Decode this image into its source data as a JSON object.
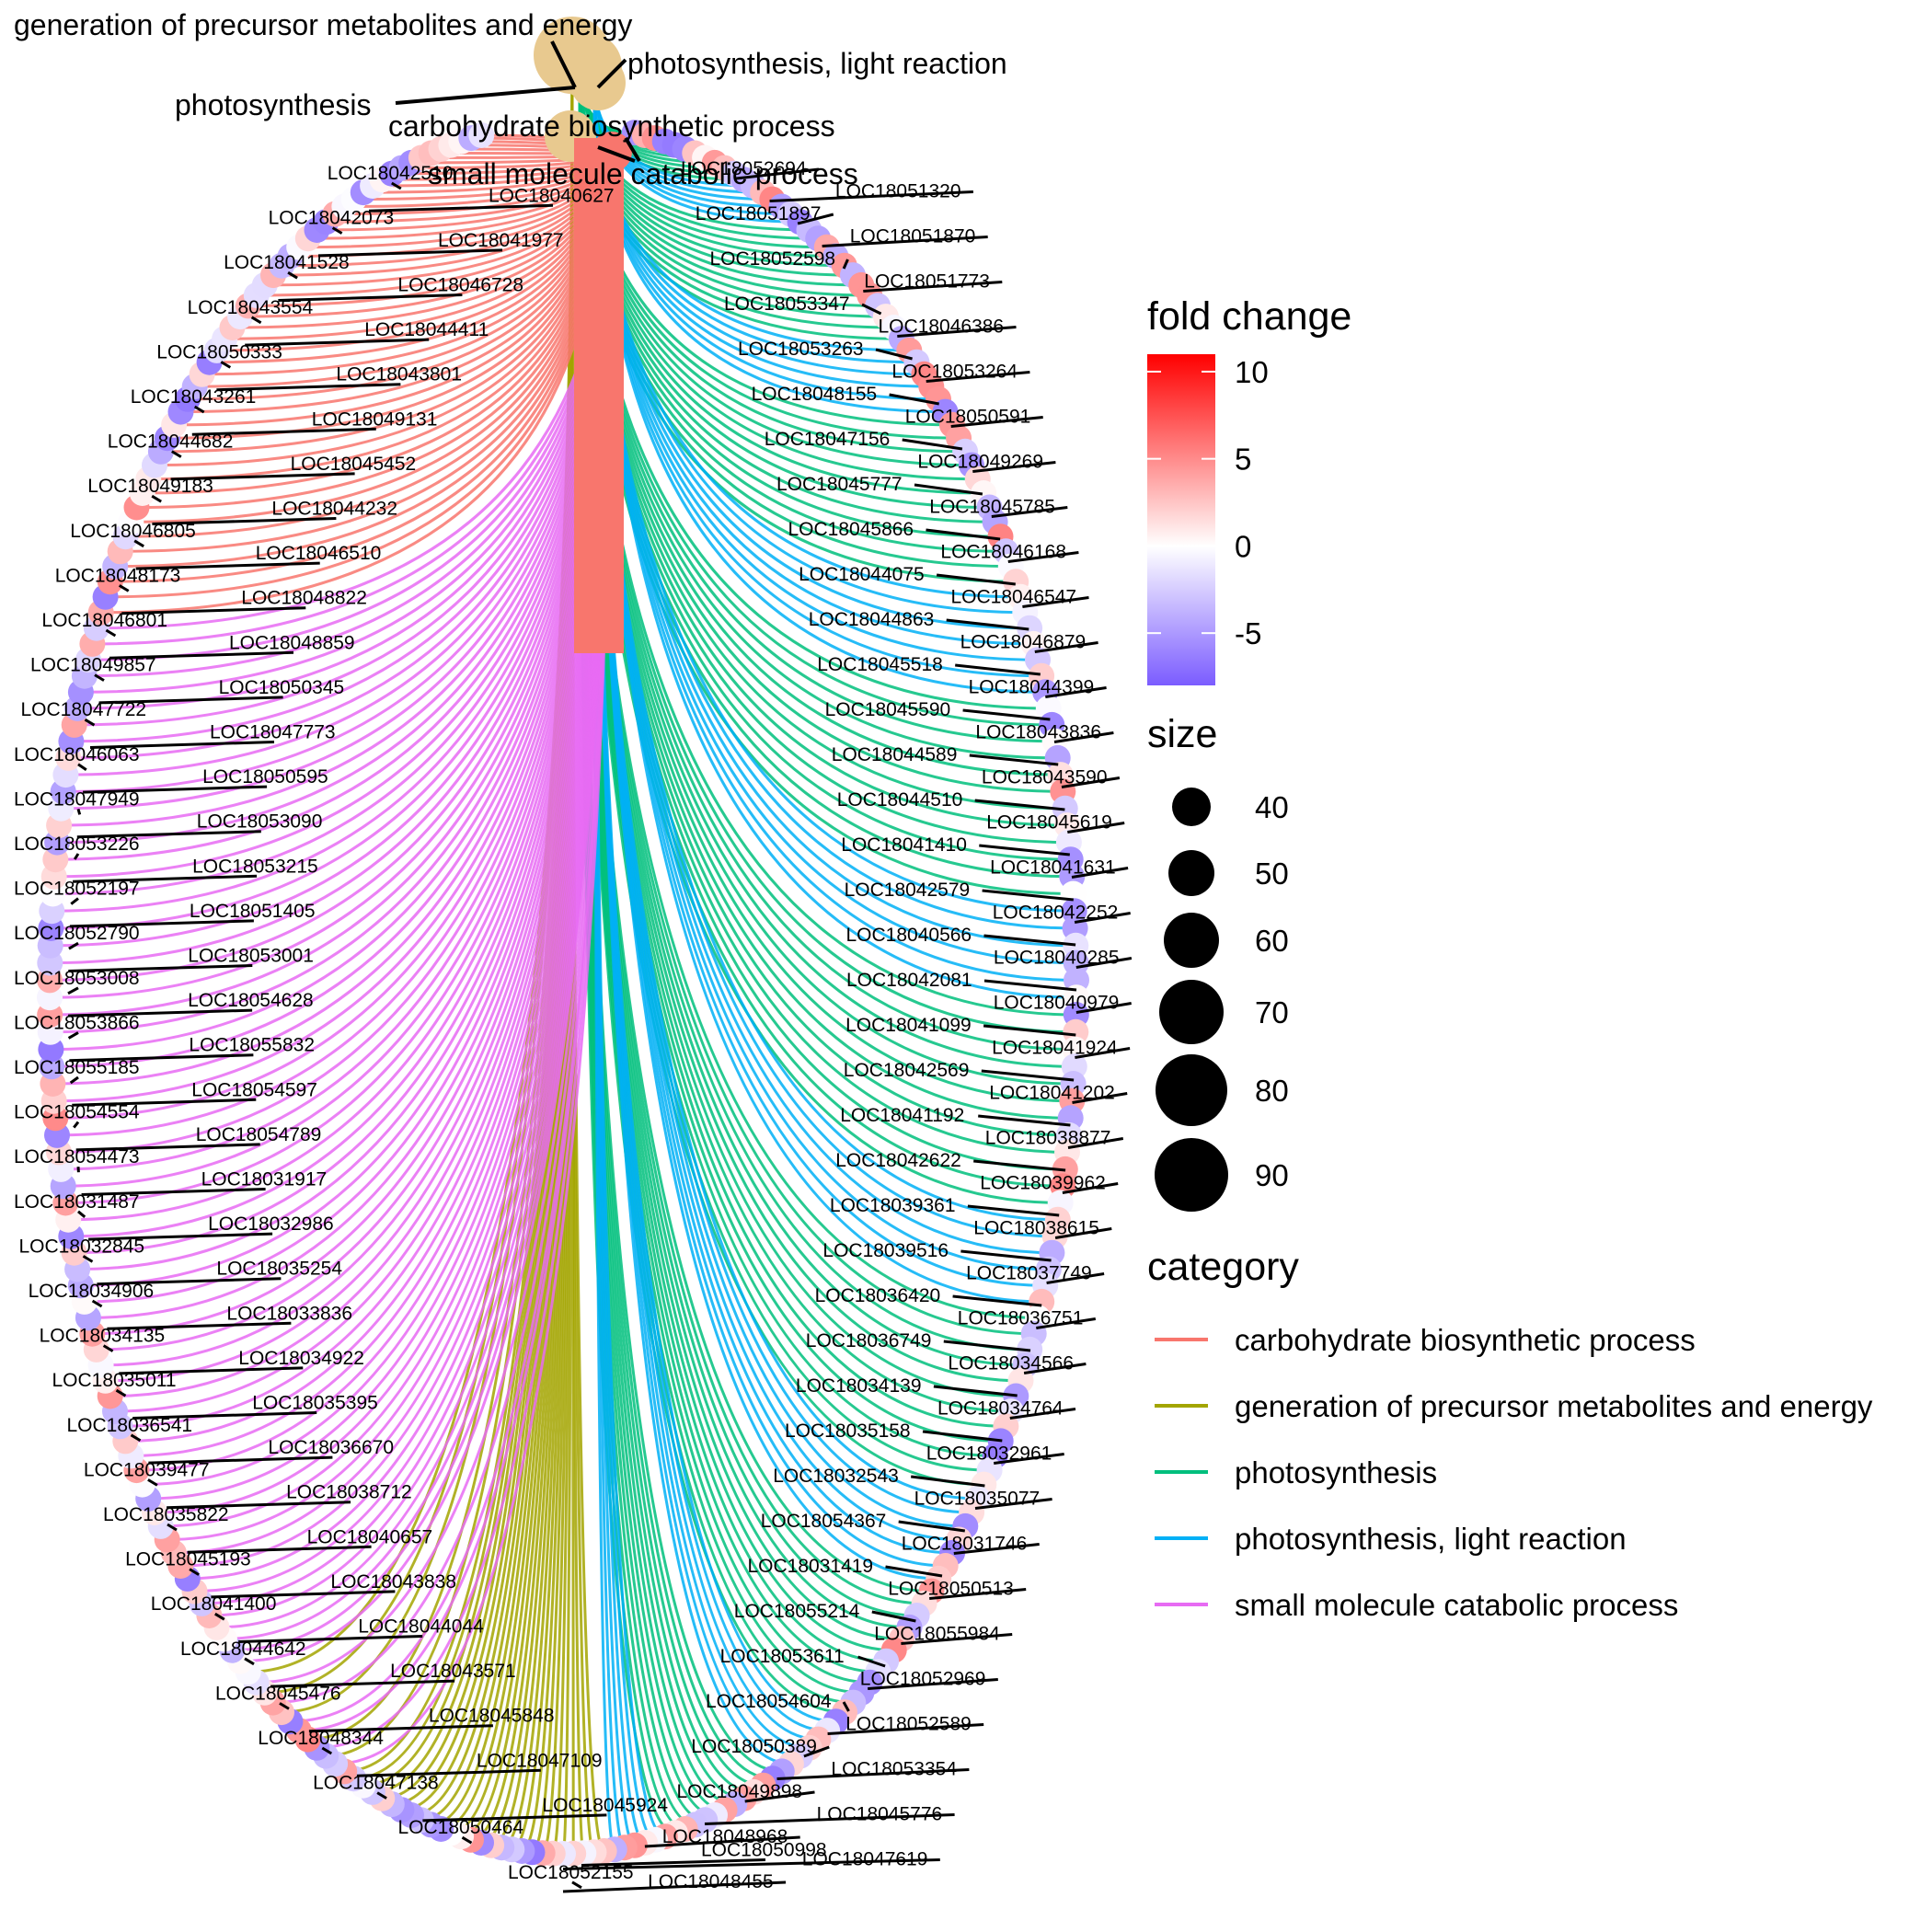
{
  "categories": [
    {
      "name": "carbohydrate biosynthetic process",
      "color": "#F8766D",
      "node_color": "#E8C98F"
    },
    {
      "name": "generation of precursor metabolites and energy",
      "color": "#A3A500",
      "node_color": "#E8C98F"
    },
    {
      "name": "photosynthesis",
      "color": "#00BF7D",
      "node_color": "#E8C98F"
    },
    {
      "name": "photosynthesis, light reaction",
      "color": "#00B0F6",
      "node_color": "#E8C98F"
    },
    {
      "name": "small molecule catabolic process",
      "color": "#E76BF3",
      "node_color": "#F8766D"
    }
  ],
  "legend": {
    "fold_change": {
      "title": "fold change",
      "ticks": [
        "10",
        "5",
        "0",
        "-5"
      ],
      "low_color": "#7B5CFF",
      "mid_color": "#FFFFFF",
      "high_color": "#FF0000",
      "range": [
        -8,
        11
      ]
    },
    "size": {
      "title": "size",
      "values": [
        "40",
        "50",
        "60",
        "70",
        "80",
        "90"
      ]
    },
    "category": {
      "title": "category"
    }
  },
  "gene_labels": [
    "LOC18052694",
    "LOC18051320",
    "LOC18051897",
    "LOC18051870",
    "LOC18052598",
    "LOC18051773",
    "LOC18053347",
    "LOC18046386",
    "LOC18053263",
    "LOC18053264",
    "LOC18048155",
    "LOC18050591",
    "LOC18047156",
    "LOC18049269",
    "LOC18045777",
    "LOC18045785",
    "LOC18045866",
    "LOC18046168",
    "LOC18044075",
    "LOC18046547",
    "LOC18044863",
    "LOC18046879",
    "LOC18045518",
    "LOC18044399",
    "LOC18045590",
    "LOC18043836",
    "LOC18044589",
    "LOC18043590",
    "LOC18044510",
    "LOC18045619",
    "LOC18041410",
    "LOC18041631",
    "LOC18042579",
    "LOC18042252",
    "LOC18040566",
    "LOC18040285",
    "LOC18042081",
    "LOC18040979",
    "LOC18041099",
    "LOC18041924",
    "LOC18042569",
    "LOC18041202",
    "LOC18041192",
    "LOC18038877",
    "LOC18042622",
    "LOC18039962",
    "LOC18039361",
    "LOC18038615",
    "LOC18039516",
    "LOC18037749",
    "LOC18036420",
    "LOC18036751",
    "LOC18036749",
    "LOC18034566",
    "LOC18034139",
    "LOC18034764",
    "LOC18035158",
    "LOC18032961",
    "LOC18032543",
    "LOC18035077",
    "LOC18054367",
    "LOC18031746",
    "LOC18031419",
    "LOC18050513",
    "LOC18055214",
    "LOC18055984",
    "LOC18053611",
    "LOC18052969",
    "LOC18054604",
    "LOC18052589",
    "LOC18050389",
    "LOC18053354",
    "LOC18049898",
    "LOC18045776",
    "LOC18048968",
    "LOC18047619",
    "LOC18048455",
    "LOC18042510",
    "LOC18040627",
    "LOC18042073",
    "LOC18041977",
    "LOC18041528",
    "LOC18046728",
    "LOC18043554",
    "LOC18044411",
    "LOC18050333",
    "LOC18043801",
    "LOC18043261",
    "LOC18049131",
    "LOC18044682",
    "LOC18045452",
    "LOC18049183",
    "LOC18044232",
    "LOC18046805",
    "LOC18046510",
    "LOC18048173",
    "LOC18048822",
    "LOC18046801",
    "LOC18048859",
    "LOC18049857",
    "LOC18050345",
    "LOC18047722",
    "LOC18047773",
    "LOC18046063",
    "LOC18050595",
    "LOC18047949",
    "LOC18053090",
    "LOC18053226",
    "LOC18053215",
    "LOC18052197",
    "LOC18051405",
    "LOC18052790",
    "LOC18053001",
    "LOC18053008",
    "LOC18054628",
    "LOC18053866",
    "LOC18055832",
    "LOC18055185",
    "LOC18054597",
    "LOC18054554",
    "LOC18054789",
    "LOC18054473",
    "LOC18031917",
    "LOC18031487",
    "LOC18032986",
    "LOC18032845",
    "LOC18035254",
    "LOC18034906",
    "LOC18033836",
    "LOC18034135",
    "LOC18034922",
    "LOC18035011",
    "LOC18035395",
    "LOC18036541",
    "LOC18036670",
    "LOC18039477",
    "LOC18038712",
    "LOC18035822",
    "LOC18040657",
    "LOC18045193",
    "LOC18043838",
    "LOC18041400",
    "LOC18044044",
    "LOC18044642",
    "LOC18043571",
    "LOC18045476",
    "LOC18045848",
    "LOC18048344",
    "LOC18047109",
    "LOC18047138",
    "LOC18045924",
    "LOC18050464",
    "LOC18050998",
    "LOC18052155"
  ]
}
